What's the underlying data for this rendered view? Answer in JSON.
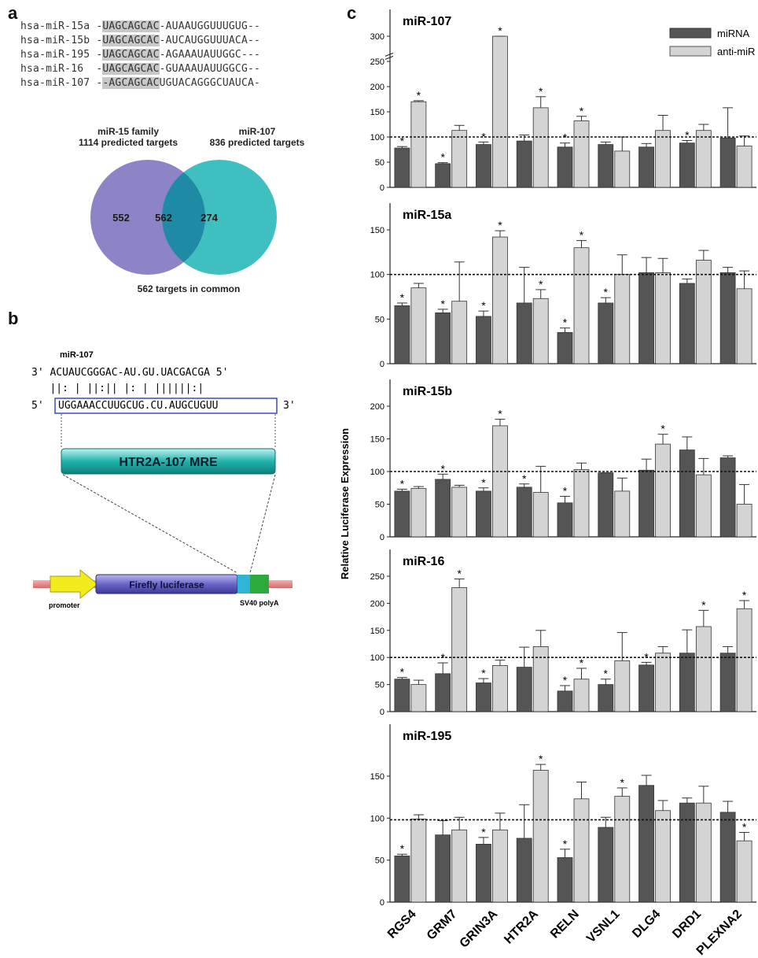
{
  "panel_a": {
    "letter": "a",
    "sequences": [
      {
        "name": "hsa-miR-15a",
        "seq": "-UAGCAGCAC-AUAAUGGUUUGUG--"
      },
      {
        "name": "hsa-miR-15b",
        "seq": "-UAGCAGCAC-AUCAUGGUUUACA--"
      },
      {
        "name": "hsa-miR-195",
        "seq": "-UAGCAGCAC-AGAAAUAUUGGC---"
      },
      {
        "name": "hsa-miR-16 ",
        "seq": "-UAGCAGCAC-GUAAAUAUUGGCG--"
      },
      {
        "name": "hsa-miR-107",
        "seq": "--AGCAGCACUGUACAGGGCUAUCA-"
      }
    ],
    "venn": {
      "left_title": "miR-15 family",
      "left_sub": "1114 predicted targets",
      "right_title": "miR-107",
      "right_sub": "836 predicted targets",
      "left_only": "552",
      "overlap": "562",
      "right_only": "274",
      "caption": "562 targets in common",
      "left_color": "#8c84c6",
      "right_color": "#3fbfbf",
      "overlap_color": "#1f8aa3"
    }
  },
  "panel_b": {
    "letter": "b",
    "mirna_label": "miR-107",
    "top_strand": "3' ACUAUCGGGAC-AU.GU.UACGACGA 5'",
    "pairing": "   ||: | ||:|| |: | ||||||:|",
    "bottom_prefix": "5'",
    "bottom_seq": "UGGAAACCUUGCUG.CU.AUGCUGUU",
    "bottom_suffix": "3'",
    "mre_label": "HTR2A-107 MRE",
    "construct": {
      "promoter": "promoter",
      "luciferase": "Firefly luciferase",
      "polya": "SV40 polyA"
    }
  },
  "panel_c": {
    "letter": "c",
    "ylabel": "Relative Luciferase Expression",
    "legend": [
      "miRNA",
      "anti-miR"
    ],
    "colors": {
      "mirna": "#555555",
      "antimir": "#d4d4d4"
    }
  },
  "chart_data": [
    {
      "type": "bar",
      "title": "miR-107",
      "categories": [
        "RGS4",
        "GRM7",
        "GRIN3A",
        "HTR2A",
        "RELN",
        "VSNL1",
        "DLG4",
        "DRD1",
        "PLEXNA2"
      ],
      "ylim": [
        0,
        300
      ],
      "yticks": [
        "0",
        "50",
        "100",
        "150",
        "200",
        "250",
        "300"
      ],
      "axis_break": true,
      "reference_line": 100,
      "series": [
        {
          "name": "miRNA",
          "values": [
            78,
            47,
            85,
            92,
            80,
            85,
            80,
            88,
            98
          ],
          "errors": [
            3,
            2,
            5,
            12,
            8,
            5,
            7,
            5,
            60
          ],
          "significant": [
            true,
            true,
            true,
            false,
            true,
            false,
            false,
            true,
            false
          ]
        },
        {
          "name": "anti-miR",
          "values": [
            170,
            113,
            300,
            158,
            132,
            72,
            113,
            113,
            82
          ],
          "errors": [
            2,
            10,
            10,
            22,
            9,
            28,
            30,
            12,
            20
          ],
          "significant": [
            true,
            false,
            true,
            true,
            true,
            false,
            false,
            false,
            false
          ]
        }
      ]
    },
    {
      "type": "bar",
      "title": "miR-15a",
      "categories": [
        "RGS4",
        "GRM7",
        "GRIN3A",
        "HTR2A",
        "RELN",
        "VSNL1",
        "DLG4",
        "DRD1",
        "PLEXNA2"
      ],
      "ylim": [
        0,
        150
      ],
      "yticks": [
        "0",
        "50",
        "100",
        "150"
      ],
      "reference_line": 100,
      "series": [
        {
          "name": "miRNA",
          "values": [
            65,
            57,
            53,
            68,
            35,
            68,
            102,
            90,
            102
          ],
          "errors": [
            3,
            4,
            6,
            40,
            5,
            6,
            17,
            5,
            6
          ],
          "significant": [
            true,
            true,
            true,
            false,
            true,
            true,
            false,
            false,
            false
          ]
        },
        {
          "name": "anti-miR",
          "values": [
            85,
            70,
            142,
            73,
            130,
            100,
            102,
            116,
            84
          ],
          "errors": [
            5,
            44,
            7,
            10,
            8,
            22,
            16,
            11,
            20
          ],
          "significant": [
            false,
            false,
            true,
            true,
            true,
            false,
            false,
            false,
            false
          ]
        }
      ]
    },
    {
      "type": "bar",
      "title": "miR-15b",
      "categories": [
        "RGS4",
        "GRM7",
        "GRIN3A",
        "HTR2A",
        "RELN",
        "VSNL1",
        "DLG4",
        "DRD1",
        "PLEXNA2"
      ],
      "ylim": [
        0,
        200
      ],
      "yticks": [
        "0",
        "50",
        "100",
        "150",
        "200"
      ],
      "reference_line": 100,
      "series": [
        {
          "name": "miRNA",
          "values": [
            70,
            88,
            70,
            76,
            52,
            98,
            102,
            133,
            121
          ],
          "errors": [
            3,
            8,
            5,
            5,
            10,
            0,
            17,
            20,
            3
          ],
          "significant": [
            true,
            true,
            true,
            true,
            true,
            false,
            false,
            false,
            false
          ]
        },
        {
          "name": "anti-miR",
          "values": [
            74,
            76,
            170,
            68,
            103,
            70,
            142,
            95,
            50
          ],
          "errors": [
            3,
            3,
            10,
            40,
            10,
            20,
            15,
            25,
            30
          ],
          "significant": [
            false,
            false,
            true,
            false,
            false,
            false,
            true,
            false,
            false
          ]
        }
      ]
    },
    {
      "type": "bar",
      "title": "miR-16",
      "categories": [
        "RGS4",
        "GRM7",
        "GRIN3A",
        "HTR2A",
        "RELN",
        "VSNL1",
        "DLG4",
        "DRD1",
        "PLEXNA2"
      ],
      "ylim": [
        0,
        250
      ],
      "yticks": [
        "0",
        "50",
        "100",
        "150",
        "200",
        "250"
      ],
      "reference_line": 100,
      "series": [
        {
          "name": "miRNA",
          "values": [
            60,
            70,
            53,
            82,
            38,
            50,
            86,
            108,
            108
          ],
          "errors": [
            3,
            20,
            8,
            37,
            10,
            10,
            5,
            43,
            12
          ],
          "significant": [
            true,
            true,
            true,
            false,
            true,
            true,
            true,
            false,
            false
          ]
        },
        {
          "name": "anti-miR",
          "values": [
            50,
            229,
            85,
            120,
            60,
            94,
            108,
            157,
            190
          ],
          "errors": [
            8,
            16,
            10,
            30,
            20,
            52,
            12,
            30,
            15
          ],
          "significant": [
            false,
            true,
            false,
            false,
            true,
            false,
            false,
            true,
            true
          ]
        }
      ]
    },
    {
      "type": "bar",
      "title": "miR-195",
      "categories": [
        "RGS4",
        "GRM7",
        "GRIN3A",
        "HTR2A",
        "RELN",
        "VSNL1",
        "DLG4",
        "DRD1",
        "PLEXNA2"
      ],
      "ylim": [
        0,
        180
      ],
      "yticks": [
        "0",
        "50",
        "100",
        "150"
      ],
      "reference_line": 98,
      "series": [
        {
          "name": "miRNA",
          "values": [
            55,
            80,
            69,
            76,
            53,
            89,
            139,
            118,
            107
          ],
          "errors": [
            2,
            17,
            8,
            40,
            10,
            12,
            12,
            6,
            13
          ],
          "significant": [
            true,
            false,
            true,
            false,
            true,
            false,
            false,
            false,
            false
          ]
        },
        {
          "name": "anti-miR",
          "values": [
            99,
            86,
            86,
            157,
            123,
            126,
            109,
            118,
            73
          ],
          "errors": [
            5,
            15,
            20,
            7,
            20,
            10,
            12,
            20,
            10
          ],
          "significant": [
            false,
            false,
            false,
            true,
            false,
            true,
            false,
            false,
            true
          ]
        }
      ]
    }
  ]
}
